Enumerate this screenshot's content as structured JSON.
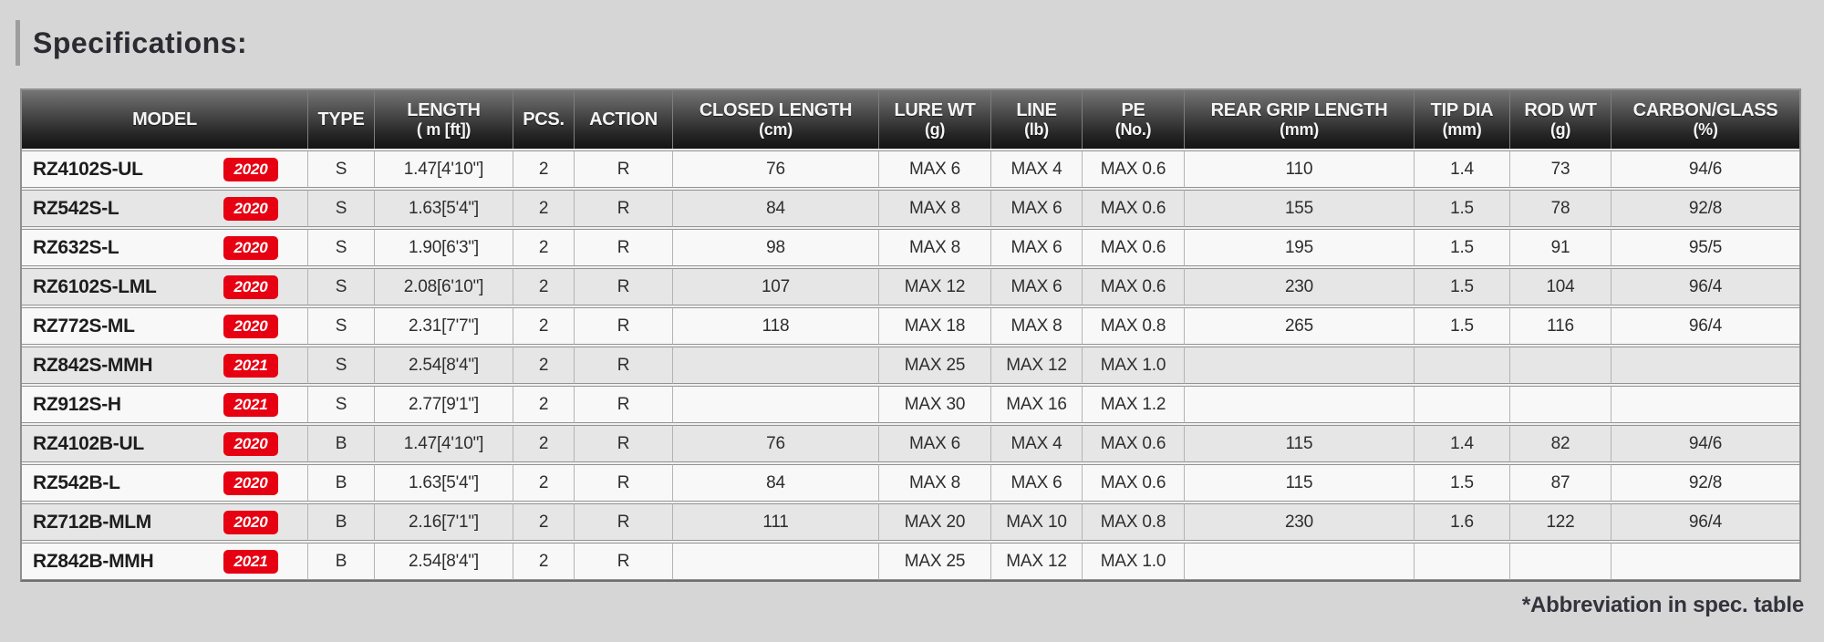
{
  "page": {
    "title": "Specifications:",
    "footnote": "*Abbreviation in spec. table"
  },
  "colors": {
    "page_background": "#d6d6d6",
    "header_gradient_top": "#757575",
    "header_gradient_bottom": "#141414",
    "header_text": "#f5f5f5",
    "row_odd": "#f8f8f8",
    "row_even": "#e6e6e6",
    "badge_red": "#e60012",
    "badge_text": "#ffffff"
  },
  "table": {
    "columns": [
      {
        "key": "model",
        "label": "MODEL",
        "unit": ""
      },
      {
        "key": "type",
        "label": "TYPE",
        "unit": ""
      },
      {
        "key": "length",
        "label": "LENGTH",
        "unit": "( m [ft])"
      },
      {
        "key": "pcs",
        "label": "PCS.",
        "unit": ""
      },
      {
        "key": "action",
        "label": "ACTION",
        "unit": ""
      },
      {
        "key": "closed_length",
        "label": "CLOSED LENGTH",
        "unit": "(cm)"
      },
      {
        "key": "lure_wt",
        "label": "LURE WT",
        "unit": "(g)"
      },
      {
        "key": "line",
        "label": "LINE",
        "unit": "(lb)"
      },
      {
        "key": "pe",
        "label": "PE",
        "unit": "(No.)"
      },
      {
        "key": "rear_grip_length",
        "label": "REAR GRIP LENGTH",
        "unit": "(mm)"
      },
      {
        "key": "tip_dia",
        "label": "TIP DIA",
        "unit": "(mm)"
      },
      {
        "key": "rod_wt",
        "label": "ROD WT",
        "unit": "(g)"
      },
      {
        "key": "carbon_glass",
        "label": "CARBON/GLASS",
        "unit": "(%)"
      }
    ],
    "rows": [
      {
        "model": "RZ4102S-UL",
        "year": "2020",
        "type": "S",
        "length": "1.47[4'10\"]",
        "pcs": "2",
        "action": "R",
        "closed_length": "76",
        "lure_wt": "MAX 6",
        "line": "MAX 4",
        "pe": "MAX 0.6",
        "rear_grip_length": "110",
        "tip_dia": "1.4",
        "rod_wt": "73",
        "carbon_glass": "94/6"
      },
      {
        "model": "RZ542S-L",
        "year": "2020",
        "type": "S",
        "length": "1.63[5'4\"]",
        "pcs": "2",
        "action": "R",
        "closed_length": "84",
        "lure_wt": "MAX 8",
        "line": "MAX 6",
        "pe": "MAX 0.6",
        "rear_grip_length": "155",
        "tip_dia": "1.5",
        "rod_wt": "78",
        "carbon_glass": "92/8"
      },
      {
        "model": "RZ632S-L",
        "year": "2020",
        "type": "S",
        "length": "1.90[6'3\"]",
        "pcs": "2",
        "action": "R",
        "closed_length": "98",
        "lure_wt": "MAX 8",
        "line": "MAX 6",
        "pe": "MAX 0.6",
        "rear_grip_length": "195",
        "tip_dia": "1.5",
        "rod_wt": "91",
        "carbon_glass": "95/5"
      },
      {
        "model": "RZ6102S-LML",
        "year": "2020",
        "type": "S",
        "length": "2.08[6'10\"]",
        "pcs": "2",
        "action": "R",
        "closed_length": "107",
        "lure_wt": "MAX 12",
        "line": "MAX 6",
        "pe": "MAX 0.6",
        "rear_grip_length": "230",
        "tip_dia": "1.5",
        "rod_wt": "104",
        "carbon_glass": "96/4"
      },
      {
        "model": "RZ772S-ML",
        "year": "2020",
        "type": "S",
        "length": "2.31[7'7\"]",
        "pcs": "2",
        "action": "R",
        "closed_length": "118",
        "lure_wt": "MAX 18",
        "line": "MAX 8",
        "pe": "MAX 0.8",
        "rear_grip_length": "265",
        "tip_dia": "1.5",
        "rod_wt": "116",
        "carbon_glass": "96/4"
      },
      {
        "model": "RZ842S-MMH",
        "year": "2021",
        "type": "S",
        "length": "2.54[8'4\"]",
        "pcs": "2",
        "action": "R",
        "closed_length": "",
        "lure_wt": "MAX 25",
        "line": "MAX 12",
        "pe": "MAX 1.0",
        "rear_grip_length": "",
        "tip_dia": "",
        "rod_wt": "",
        "carbon_glass": ""
      },
      {
        "model": "RZ912S-H",
        "year": "2021",
        "type": "S",
        "length": "2.77[9'1\"]",
        "pcs": "2",
        "action": "R",
        "closed_length": "",
        "lure_wt": "MAX 30",
        "line": "MAX 16",
        "pe": "MAX 1.2",
        "rear_grip_length": "",
        "tip_dia": "",
        "rod_wt": "",
        "carbon_glass": ""
      },
      {
        "model": "RZ4102B-UL",
        "year": "2020",
        "type": "B",
        "length": "1.47[4'10\"]",
        "pcs": "2",
        "action": "R",
        "closed_length": "76",
        "lure_wt": "MAX 6",
        "line": "MAX 4",
        "pe": "MAX 0.6",
        "rear_grip_length": "115",
        "tip_dia": "1.4",
        "rod_wt": "82",
        "carbon_glass": "94/6"
      },
      {
        "model": "RZ542B-L",
        "year": "2020",
        "type": "B",
        "length": "1.63[5'4\"]",
        "pcs": "2",
        "action": "R",
        "closed_length": "84",
        "lure_wt": "MAX 8",
        "line": "MAX 6",
        "pe": "MAX 0.6",
        "rear_grip_length": "115",
        "tip_dia": "1.5",
        "rod_wt": "87",
        "carbon_glass": "92/8"
      },
      {
        "model": "RZ712B-MLM",
        "year": "2020",
        "type": "B",
        "length": "2.16[7'1\"]",
        "pcs": "2",
        "action": "R",
        "closed_length": "111",
        "lure_wt": "MAX 20",
        "line": "MAX 10",
        "pe": "MAX 0.8",
        "rear_grip_length": "230",
        "tip_dia": "1.6",
        "rod_wt": "122",
        "carbon_glass": "96/4"
      },
      {
        "model": "RZ842B-MMH",
        "year": "2021",
        "type": "B",
        "length": "2.54[8'4\"]",
        "pcs": "2",
        "action": "R",
        "closed_length": "",
        "lure_wt": "MAX 25",
        "line": "MAX 12",
        "pe": "MAX 1.0",
        "rear_grip_length": "",
        "tip_dia": "",
        "rod_wt": "",
        "carbon_glass": ""
      }
    ]
  }
}
